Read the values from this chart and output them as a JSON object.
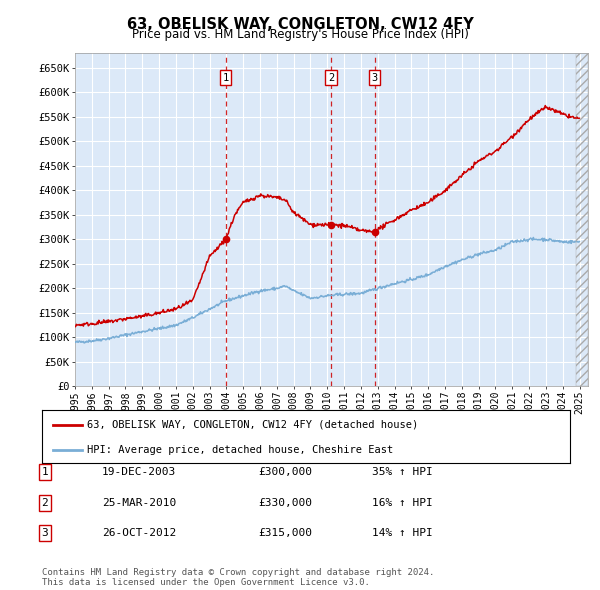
{
  "title": "63, OBELISK WAY, CONGLETON, CW12 4FY",
  "subtitle": "Price paid vs. HM Land Registry's House Price Index (HPI)",
  "plot_background": "#dce9f8",
  "grid_color": "#ffffff",
  "ylim": [
    0,
    680000
  ],
  "yticks": [
    0,
    50000,
    100000,
    150000,
    200000,
    250000,
    300000,
    350000,
    400000,
    450000,
    500000,
    550000,
    600000,
    650000
  ],
  "ytick_labels": [
    "£0",
    "£50K",
    "£100K",
    "£150K",
    "£200K",
    "£250K",
    "£300K",
    "£350K",
    "£400K",
    "£450K",
    "£500K",
    "£550K",
    "£600K",
    "£650K"
  ],
  "sale_prices": [
    300000,
    330000,
    315000
  ],
  "sale_labels": [
    "1",
    "2",
    "3"
  ],
  "sale_date_strs": [
    "19-DEC-2003",
    "25-MAR-2010",
    "26-OCT-2012"
  ],
  "sale_price_strs": [
    "£300,000",
    "£330,000",
    "£315,000"
  ],
  "sale_pct_hpi": [
    "35%",
    "16%",
    "14%"
  ],
  "red_color": "#cc0000",
  "blue_color": "#7aaed6",
  "vline_color": "#cc0000",
  "legend_label_red": "63, OBELISK WAY, CONGLETON, CW12 4FY (detached house)",
  "legend_label_blue": "HPI: Average price, detached house, Cheshire East",
  "footer_text": "Contains HM Land Registry data © Crown copyright and database right 2024.\nThis data is licensed under the Open Government Licence v3.0.",
  "xtick_years": [
    1995,
    1996,
    1997,
    1998,
    1999,
    2000,
    2001,
    2002,
    2003,
    2004,
    2005,
    2006,
    2007,
    2008,
    2009,
    2010,
    2011,
    2012,
    2013,
    2014,
    2015,
    2016,
    2017,
    2018,
    2019,
    2020,
    2021,
    2022,
    2023,
    2024,
    2025
  ],
  "sale_year_floats": [
    2003.96,
    2010.23,
    2012.82
  ],
  "hpi_anchors_t": [
    1995,
    1996,
    1997,
    1998,
    1999,
    2000,
    2001,
    2002,
    2003,
    2004,
    2005,
    2006,
    2007,
    2007.5,
    2008,
    2009,
    2010,
    2011,
    2012,
    2013,
    2014,
    2015,
    2016,
    2017,
    2018,
    2019,
    2020,
    2021,
    2022,
    2023,
    2024,
    2025
  ],
  "hpi_anchors_v": [
    90000,
    93000,
    98000,
    105000,
    112000,
    118000,
    125000,
    140000,
    158000,
    175000,
    185000,
    195000,
    200000,
    205000,
    195000,
    180000,
    185000,
    188000,
    190000,
    200000,
    210000,
    218000,
    228000,
    245000,
    258000,
    270000,
    278000,
    295000,
    300000,
    300000,
    295000,
    295000
  ],
  "red_anchors_t": [
    1995,
    1996,
    1997,
    1998,
    1999,
    2000,
    2001,
    2002,
    2003,
    2003.96,
    2004.5,
    2005,
    2006,
    2007,
    2007.5,
    2008,
    2009,
    2010,
    2010.23,
    2011,
    2012,
    2012.82,
    2013,
    2014,
    2015,
    2016,
    2017,
    2018,
    2019,
    2020,
    2021,
    2022,
    2023,
    2024,
    2025
  ],
  "red_anchors_v": [
    125000,
    128000,
    132000,
    138000,
    143000,
    150000,
    158000,
    175000,
    265000,
    300000,
    350000,
    375000,
    390000,
    385000,
    380000,
    355000,
    330000,
    330000,
    330000,
    328000,
    318000,
    315000,
    320000,
    340000,
    360000,
    375000,
    400000,
    430000,
    460000,
    480000,
    510000,
    545000,
    570000,
    555000,
    545000
  ]
}
